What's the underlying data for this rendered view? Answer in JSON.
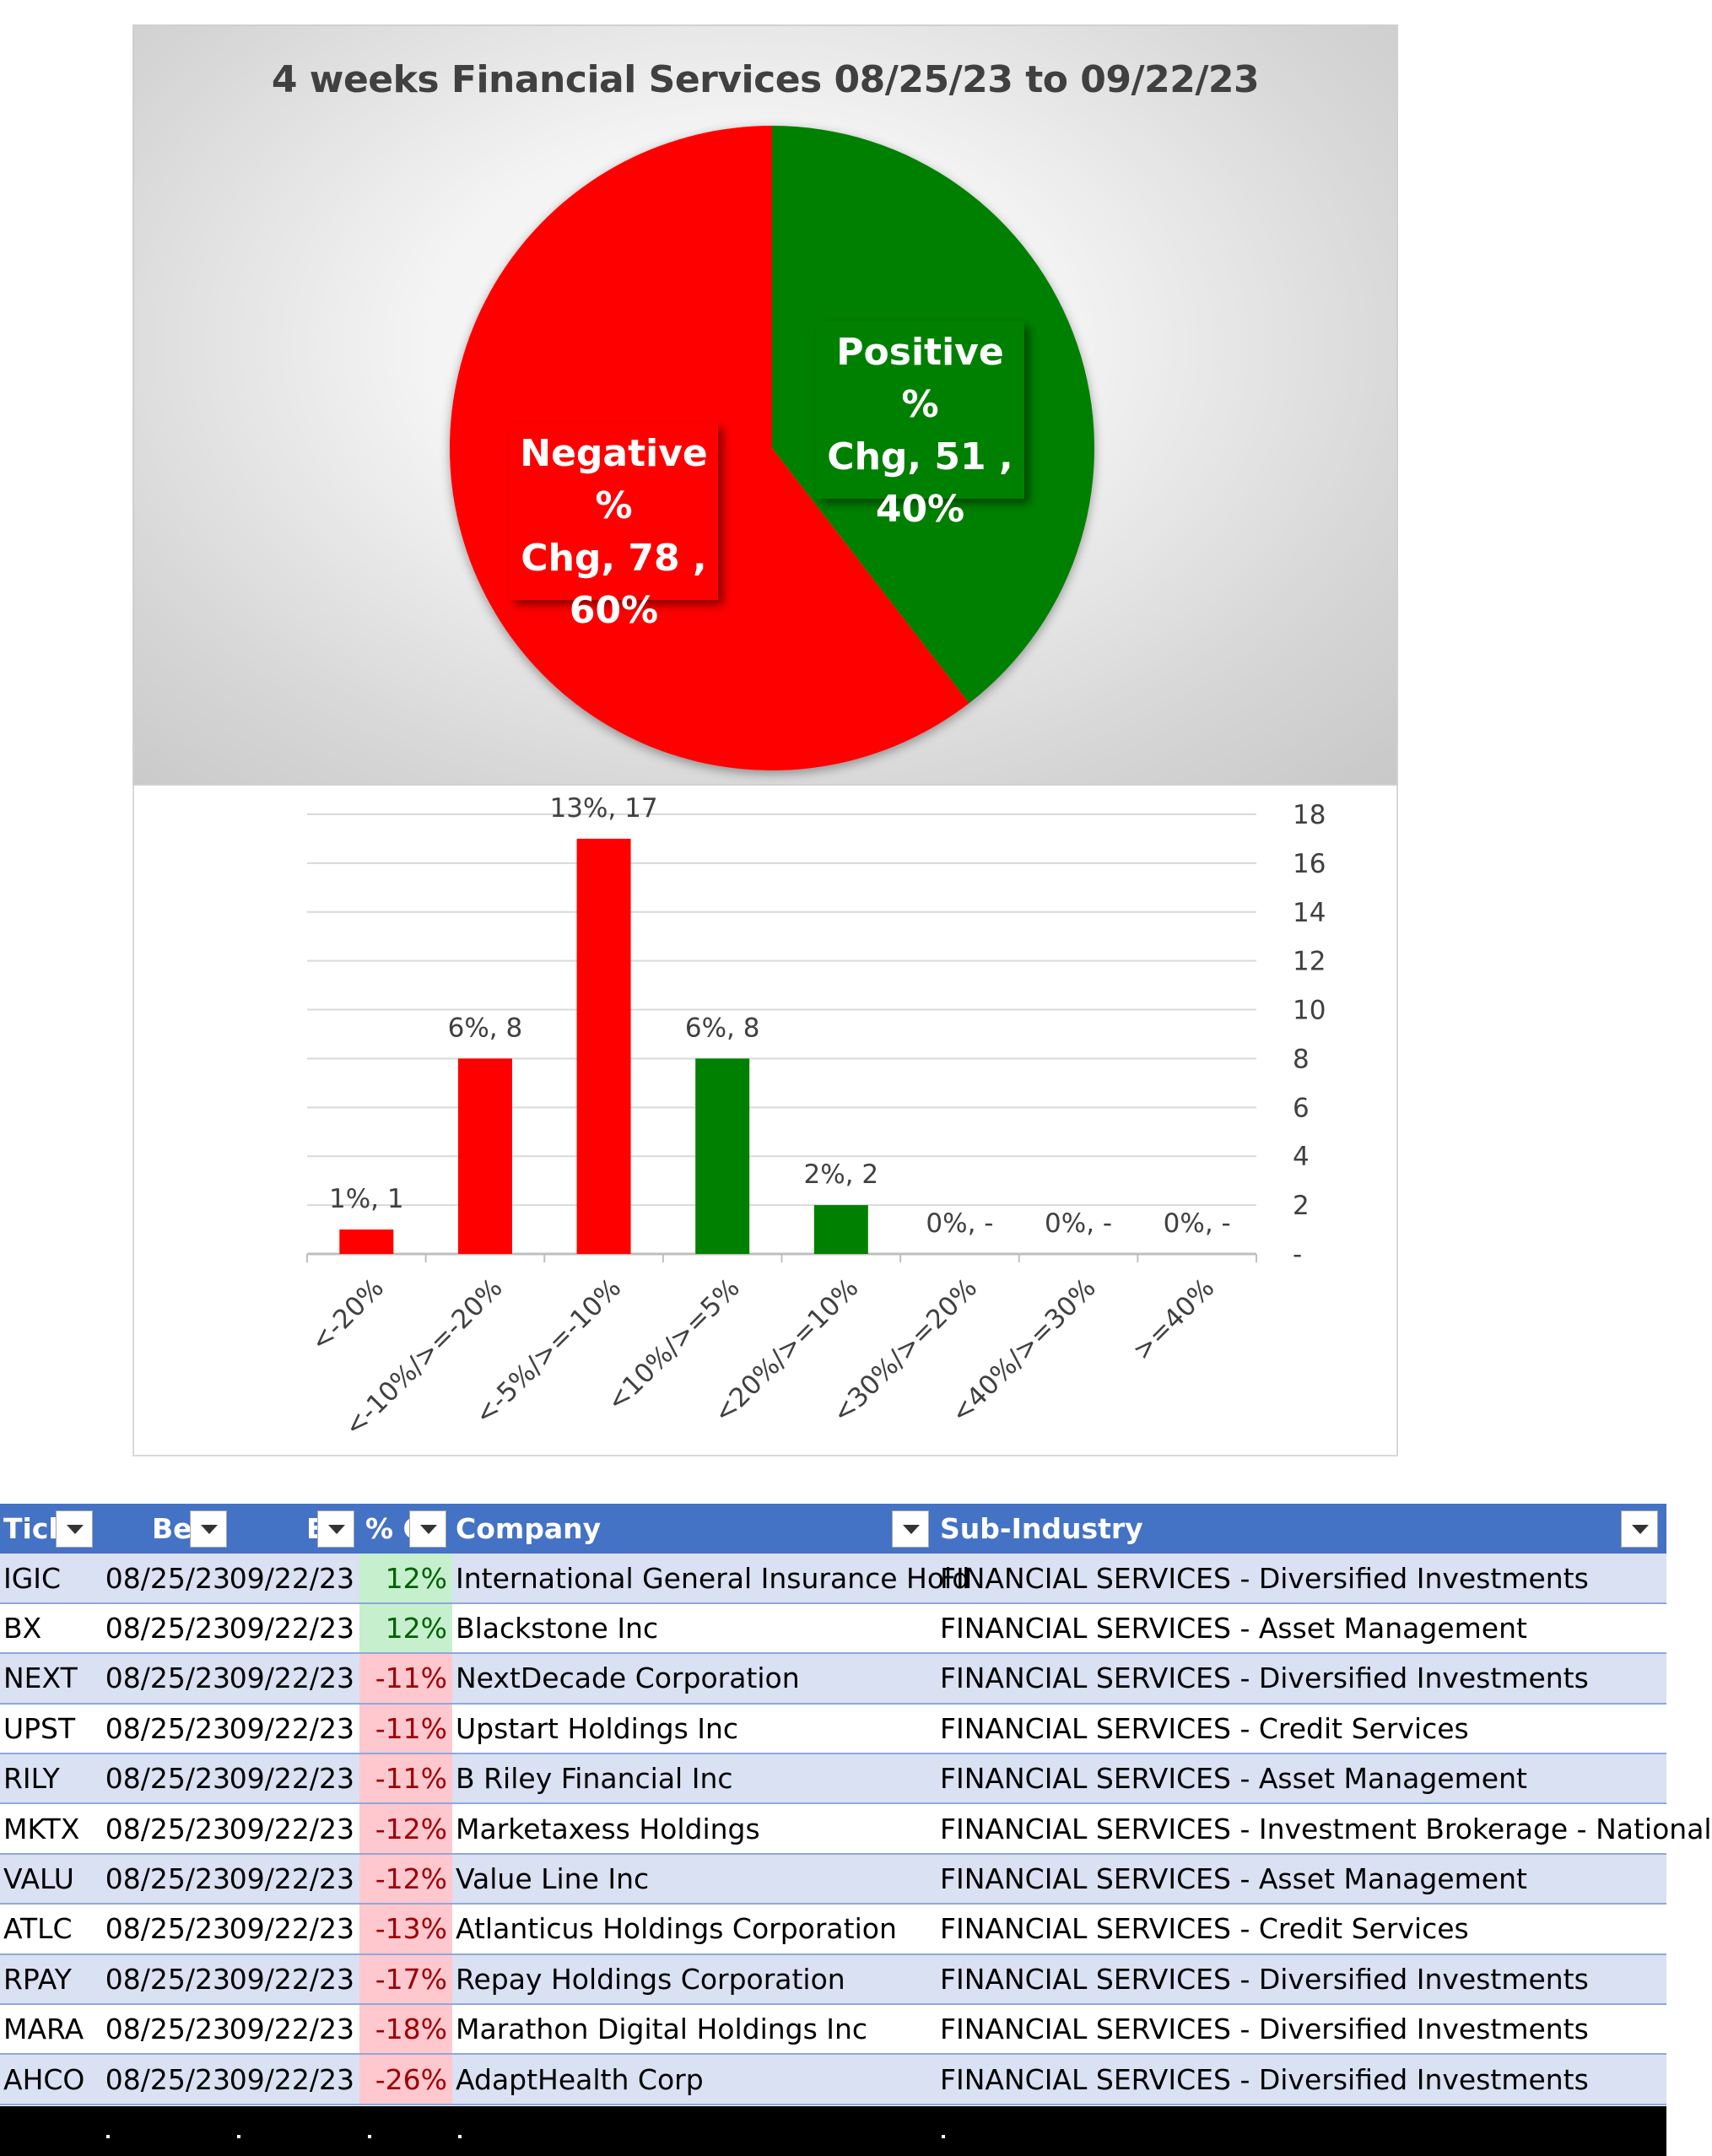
{
  "chart_data": [
    {
      "type": "pie",
      "title": "4 weeks Financial Services 08/25/23 to 09/22/23",
      "slices": [
        {
          "name": "Positive % Chg",
          "count": 51,
          "percent": "40%",
          "color": "#008000",
          "label_lines": [
            "Positive %",
            "Chg,  51 ,",
            "40%"
          ]
        },
        {
          "name": "Negative % Chg",
          "count": 78,
          "percent": "60%",
          "color": "#ff0000",
          "label_lines": [
            "Negative %",
            "Chg,  78 ,",
            "60%"
          ]
        }
      ]
    },
    {
      "type": "bar",
      "categories": [
        "<-20%",
        "<-10%/>=-20%",
        "<-5%/>=-10%",
        "<10%/>=5%",
        "<20%/>=10%",
        "<30%/>=20%",
        "<40%/>=30%",
        ">=40%"
      ],
      "values": [
        1,
        8,
        17,
        8,
        2,
        0,
        0,
        0
      ],
      "colors": [
        "#ff0000",
        "#ff0000",
        "#ff0000",
        "#008000",
        "#008000",
        "#008000",
        "#008000",
        "#008000"
      ],
      "data_labels": [
        "1%,  1",
        "6%,  8",
        "13%,  17",
        "6%,  8",
        "2%,  2",
        "0%,  -",
        "0%,  -",
        "0%,  -"
      ],
      "ylim": [
        0,
        18
      ],
      "yticks": [
        "-",
        "2",
        "4",
        "6",
        "8",
        "10",
        "12",
        "14",
        "16",
        "18"
      ],
      "y_axis_side": "right",
      "grid": true
    }
  ],
  "table": {
    "headers": [
      "Tick",
      "Be",
      "E",
      "% C",
      "Company",
      "Sub-Industry"
    ],
    "rows": [
      {
        "tick": "IGIC",
        "begin": "08/25/23",
        "end": "09/22/23",
        "chg": "12%",
        "company": "International General Insurance Hold",
        "sub": "FINANCIAL SERVICES - Diversified Investments",
        "sign": "pos"
      },
      {
        "tick": "BX",
        "begin": "08/25/23",
        "end": "09/22/23",
        "chg": "12%",
        "company": "Blackstone Inc",
        "sub": "FINANCIAL SERVICES - Asset Management",
        "sign": "pos"
      },
      {
        "tick": "NEXT",
        "begin": "08/25/23",
        "end": "09/22/23",
        "chg": "-11%",
        "company": "NextDecade Corporation",
        "sub": "FINANCIAL SERVICES - Diversified Investments",
        "sign": "neg"
      },
      {
        "tick": "UPST",
        "begin": "08/25/23",
        "end": "09/22/23",
        "chg": "-11%",
        "company": "Upstart Holdings Inc",
        "sub": "FINANCIAL SERVICES - Credit Services",
        "sign": "neg"
      },
      {
        "tick": "RILY",
        "begin": "08/25/23",
        "end": "09/22/23",
        "chg": "-11%",
        "company": "B Riley Financial Inc",
        "sub": "FINANCIAL SERVICES - Asset Management",
        "sign": "neg"
      },
      {
        "tick": "MKTX",
        "begin": "08/25/23",
        "end": "09/22/23",
        "chg": "-12%",
        "company": "Marketaxess Holdings",
        "sub": "FINANCIAL SERVICES - Investment Brokerage - National",
        "sign": "neg"
      },
      {
        "tick": "VALU",
        "begin": "08/25/23",
        "end": "09/22/23",
        "chg": "-12%",
        "company": "Value Line Inc",
        "sub": "FINANCIAL SERVICES - Asset Management",
        "sign": "neg"
      },
      {
        "tick": "ATLC",
        "begin": "08/25/23",
        "end": "09/22/23",
        "chg": "-13%",
        "company": "Atlanticus Holdings Corporation",
        "sub": "FINANCIAL SERVICES - Credit Services",
        "sign": "neg"
      },
      {
        "tick": "RPAY",
        "begin": "08/25/23",
        "end": "09/22/23",
        "chg": "-17%",
        "company": "Repay Holdings Corporation",
        "sub": "FINANCIAL SERVICES - Diversified Investments",
        "sign": "neg"
      },
      {
        "tick": "MARA",
        "begin": "08/25/23",
        "end": "09/22/23",
        "chg": "-18%",
        "company": "Marathon Digital Holdings Inc",
        "sub": "FINANCIAL SERVICES - Diversified Investments",
        "sign": "neg"
      },
      {
        "tick": "AHCO",
        "begin": "08/25/23",
        "end": "09/22/23",
        "chg": "-26%",
        "company": "AdaptHealth Corp",
        "sub": "FINANCIAL SERVICES - Diversified Investments",
        "sign": "neg"
      }
    ]
  }
}
